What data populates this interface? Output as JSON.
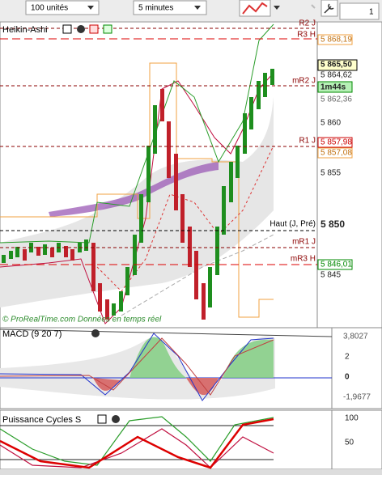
{
  "toolbar": {
    "quantity": "100 unités",
    "timeframe": "5 minutes",
    "value": "1"
  },
  "price_panel": {
    "title": "Heikin-Ashi",
    "levels": [
      "R2 J",
      "R3 H",
      "mR2 J",
      "R1 J",
      "Haut (J, Pré)",
      "mR1 J",
      "mR3 H"
    ],
    "axis_labels": [
      "5 868,19",
      "5 865,50",
      "5 864,62",
      "1m44s",
      "5 862,36",
      "5 860",
      "5 857,98",
      "5 857,08",
      "5 855",
      "5 850",
      "5 846,01",
      "5 845"
    ],
    "credit": "© ProRealTime.com Données en temps réel"
  },
  "macd_panel": {
    "title": "MACD (9 20 7)",
    "axis_labels": [
      "3,8027",
      "2",
      "0",
      "-1,9677"
    ]
  },
  "cycles_panel": {
    "title": "Puissance Cycles S",
    "axis_labels": [
      "100",
      "50"
    ]
  }
}
